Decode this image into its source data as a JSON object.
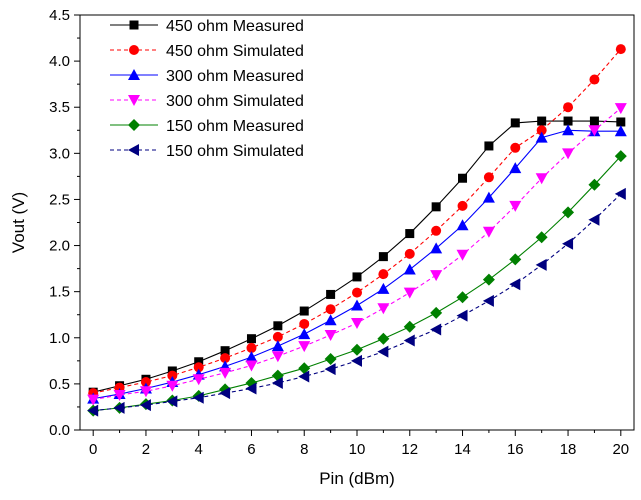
{
  "chart_data": {
    "type": "line",
    "xlabel": "Pin (dBm)",
    "ylabel": "Vout (V)",
    "xlim": [
      -0.5,
      20.5
    ],
    "ylim": [
      0.0,
      4.5
    ],
    "xticks": [
      0,
      2,
      4,
      6,
      8,
      10,
      12,
      14,
      16,
      18,
      20
    ],
    "yticks": [
      0.0,
      0.5,
      1.0,
      1.5,
      2.0,
      2.5,
      3.0,
      3.5,
      4.0,
      4.5
    ],
    "xtick_labels": [
      "0",
      "2",
      "4",
      "6",
      "8",
      "10",
      "12",
      "14",
      "16",
      "18",
      "20"
    ],
    "ytick_labels": [
      "0.0",
      "0.5",
      "1.0",
      "1.5",
      "2.0",
      "2.5",
      "3.0",
      "3.5",
      "4.0",
      "4.5"
    ],
    "grid": false,
    "legend_position": "top-left",
    "x": [
      0,
      1,
      2,
      3,
      4,
      5,
      6,
      7,
      8,
      9,
      10,
      11,
      12,
      13,
      14,
      15,
      16,
      17,
      18,
      19,
      20
    ],
    "series": [
      {
        "name": "450 ohm Measured",
        "color": "#000000",
        "marker": "square",
        "dashed": false,
        "values": [
          0.41,
          0.48,
          0.55,
          0.64,
          0.74,
          0.86,
          0.99,
          1.13,
          1.29,
          1.47,
          1.66,
          1.88,
          2.13,
          2.42,
          2.73,
          3.08,
          3.33,
          3.35,
          3.35,
          3.35,
          3.34
        ]
      },
      {
        "name": "450 ohm Simulated",
        "color": "#ff0000",
        "marker": "circle",
        "dashed": true,
        "values": [
          0.4,
          0.46,
          0.52,
          0.59,
          0.68,
          0.78,
          0.89,
          1.01,
          1.15,
          1.31,
          1.49,
          1.69,
          1.91,
          2.16,
          2.43,
          2.74,
          3.06,
          3.25,
          3.5,
          3.8,
          4.13
        ]
      },
      {
        "name": "300 ohm Measured",
        "color": "#0000ff",
        "marker": "triangle-up",
        "dashed": false,
        "values": [
          0.34,
          0.39,
          0.45,
          0.52,
          0.6,
          0.69,
          0.79,
          0.91,
          1.04,
          1.19,
          1.35,
          1.53,
          1.74,
          1.97,
          2.22,
          2.52,
          2.84,
          3.17,
          3.25,
          3.24,
          3.24
        ]
      },
      {
        "name": "300 ohm Simulated",
        "color": "#ff00ff",
        "marker": "triangle-down",
        "dashed": true,
        "values": [
          0.33,
          0.38,
          0.42,
          0.48,
          0.55,
          0.62,
          0.7,
          0.8,
          0.91,
          1.03,
          1.16,
          1.32,
          1.49,
          1.68,
          1.9,
          2.15,
          2.43,
          2.73,
          3.0,
          3.25,
          3.49
        ]
      },
      {
        "name": "150 ohm Measured",
        "color": "#008000",
        "marker": "diamond",
        "dashed": false,
        "values": [
          0.21,
          0.24,
          0.28,
          0.32,
          0.37,
          0.44,
          0.51,
          0.59,
          0.67,
          0.77,
          0.87,
          0.99,
          1.12,
          1.27,
          1.44,
          1.63,
          1.85,
          2.09,
          2.36,
          2.66,
          2.97
        ]
      },
      {
        "name": "150 ohm Simulated",
        "color": "#000080",
        "marker": "triangle-left",
        "dashed": true,
        "values": [
          0.21,
          0.24,
          0.27,
          0.31,
          0.35,
          0.4,
          0.45,
          0.51,
          0.58,
          0.66,
          0.75,
          0.85,
          0.97,
          1.09,
          1.24,
          1.4,
          1.58,
          1.79,
          2.02,
          2.28,
          2.56
        ]
      }
    ]
  }
}
